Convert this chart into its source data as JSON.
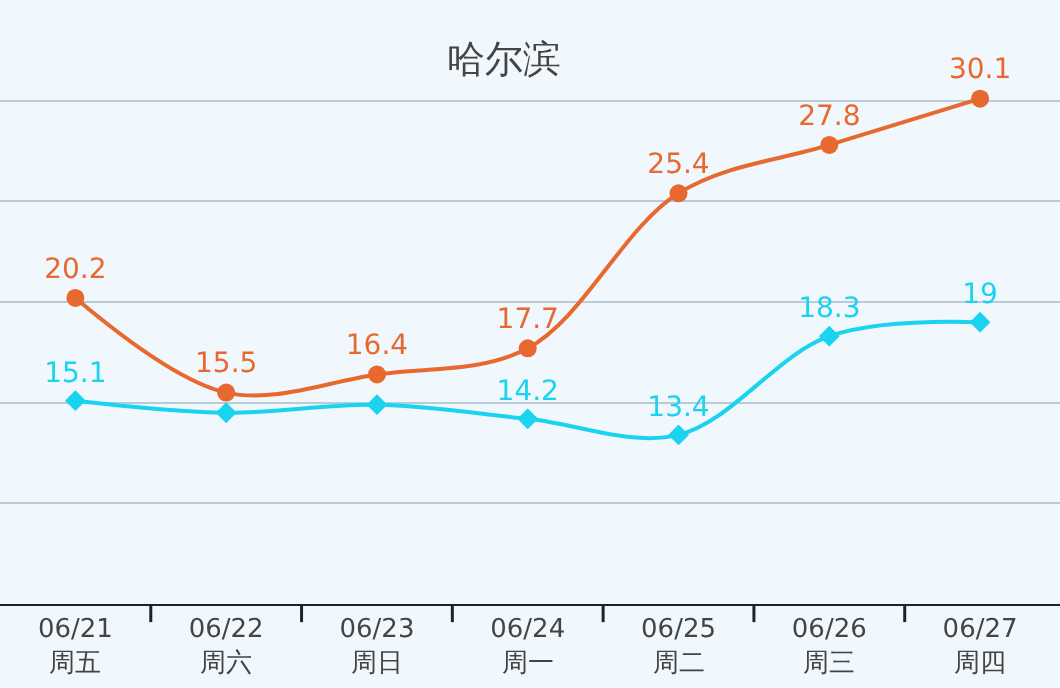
{
  "chart_data": {
    "type": "line",
    "title": "哈尔滨",
    "categories": [
      "06/21\n周五",
      "06/22\n周六",
      "06/23\n周日",
      "06/24\n周一",
      "06/25\n周二",
      "06/26\n周三",
      "06/27\n周四"
    ],
    "series": [
      {
        "color": "#e8692f",
        "marker": "circle",
        "values": [
          20.2,
          15.5,
          16.4,
          17.7,
          25.4,
          27.8,
          30.1
        ],
        "value_labels": [
          "20.2",
          "15.5",
          "16.4",
          "17.7",
          "25.4",
          "27.8",
          "30.1"
        ]
      },
      {
        "color": "#1ad3ef",
        "marker": "diamond",
        "values": [
          15.1,
          14.5,
          14.9,
          14.2,
          13.4,
          18.3,
          19
        ],
        "value_labels": [
          "15.1",
          null,
          null,
          "14.2",
          "13.4",
          "18.3",
          "19"
        ]
      }
    ],
    "ylim": [
      5,
      35
    ],
    "yticks": [
      {
        "value": 10,
        "label": null
      },
      {
        "value": 15,
        "label": null
      },
      {
        "value": 20,
        "label": null
      },
      {
        "value": 25,
        "label": null
      },
      {
        "value": 30,
        "label": null
      },
      {
        "value": 35,
        "label": null
      }
    ],
    "grid": "y",
    "tick_labels": "x"
  }
}
